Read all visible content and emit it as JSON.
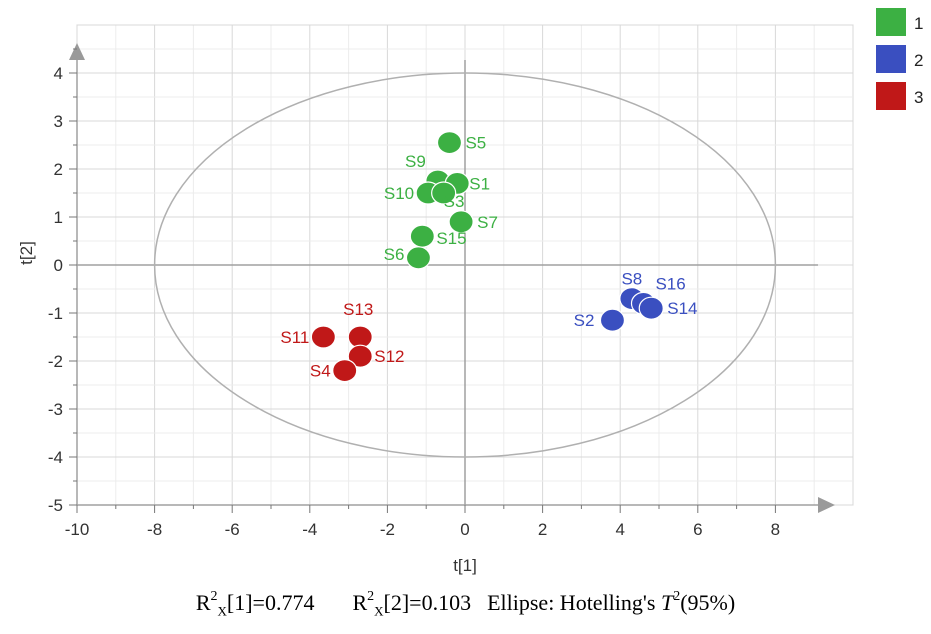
{
  "chart_data": {
    "type": "scatter",
    "title": "",
    "xlabel": "t[1]",
    "ylabel": "t[2]",
    "xlim": [
      -10,
      10
    ],
    "ylim": [
      -5,
      5
    ],
    "xticks": [
      "-10",
      "-8",
      "-6",
      "-4",
      "-2",
      "0",
      "2",
      "4",
      "6",
      "8"
    ],
    "yticks": [
      "4",
      "3",
      "2",
      "1",
      "0",
      "-1",
      "-2",
      "-3",
      "-4",
      "-5"
    ],
    "grid": true,
    "legend_position": "top-right",
    "ellipse": {
      "cx": 0,
      "cy": 0,
      "rx": 8.0,
      "ry": 4.0
    },
    "series": [
      {
        "name": "1",
        "color": "#3cb043",
        "points": [
          {
            "label": "S5",
            "x": -0.4,
            "y": 2.55
          },
          {
            "label": "S9",
            "x": -0.7,
            "y": 1.75
          },
          {
            "label": "S1",
            "x": -0.2,
            "y": 1.7
          },
          {
            "label": "S10",
            "x": -0.95,
            "y": 1.5
          },
          {
            "label": "S3",
            "x": -0.55,
            "y": 1.5
          },
          {
            "label": "S7",
            "x": -0.1,
            "y": 0.9
          },
          {
            "label": "S15",
            "x": -1.1,
            "y": 0.6
          },
          {
            "label": "S6",
            "x": -1.2,
            "y": 0.15
          }
        ]
      },
      {
        "name": "2",
        "color": "#3a4fc0",
        "points": [
          {
            "label": "S8",
            "x": 4.3,
            "y": -0.7
          },
          {
            "label": "S16",
            "x": 4.6,
            "y": -0.8
          },
          {
            "label": "S14",
            "x": 4.8,
            "y": -0.9
          },
          {
            "label": "S2",
            "x": 3.8,
            "y": -1.15
          }
        ]
      },
      {
        "name": "3",
        "color": "#c01818",
        "points": [
          {
            "label": "S11",
            "x": -3.65,
            "y": -1.5
          },
          {
            "label": "S13",
            "x": -2.7,
            "y": -1.5
          },
          {
            "label": "S12",
            "x": -2.7,
            "y": -1.9
          },
          {
            "label": "S4",
            "x": -3.1,
            "y": -2.2
          }
        ]
      }
    ]
  },
  "footer": {
    "r2x1_prefix": "R",
    "r2x1_sup": "2",
    "r2x1_sub": "X",
    "r2x1_value": "[1]=0.774",
    "r2x2_prefix": "R",
    "r2x2_sup": "2",
    "r2x2_sub": "X",
    "r2x2_value": "[2]=0.103",
    "ellipse_text": "Ellipse: Hotelling's",
    "t2_symbol": "T",
    "t2_sup": "2",
    "t2_value": "(95%)"
  }
}
